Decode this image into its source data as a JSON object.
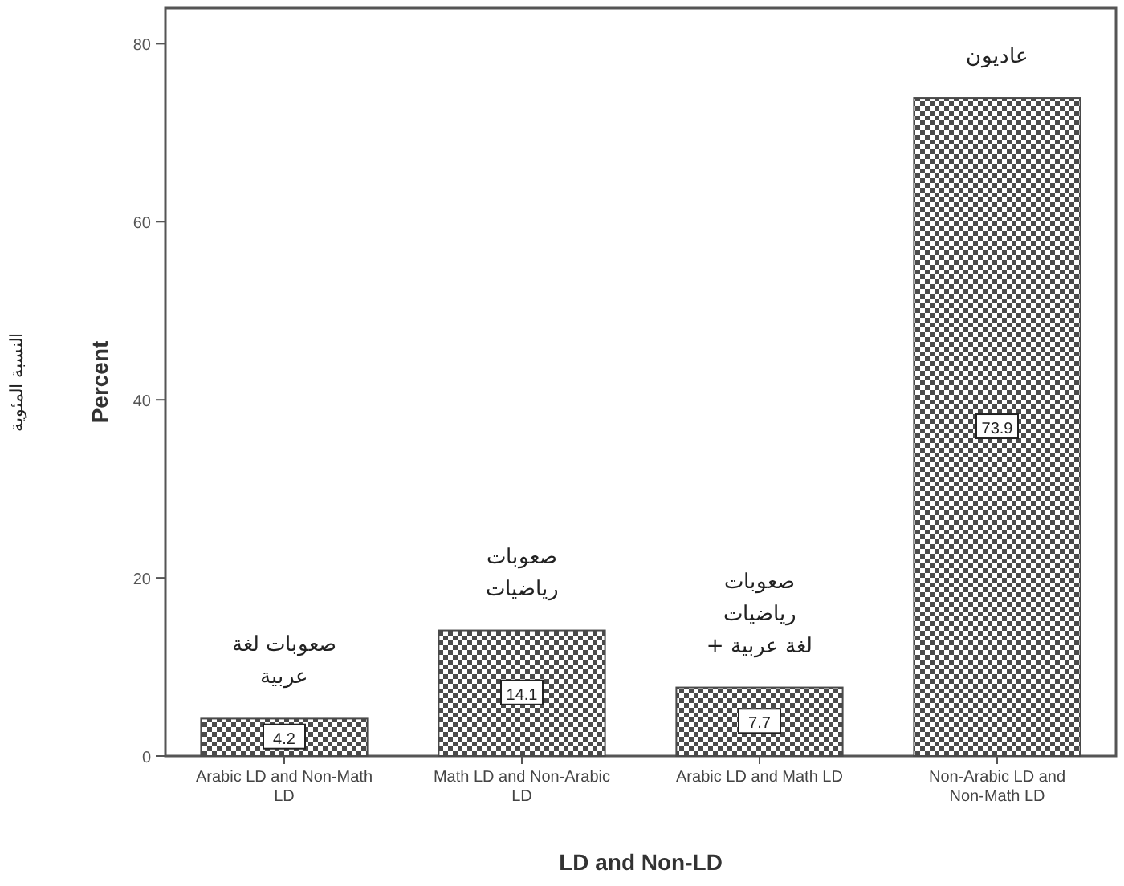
{
  "chart_data": {
    "type": "bar",
    "xlabel": "LD and Non-LD",
    "ylabel": "Percent",
    "categories": [
      "Arabic LD and Non-Math LD",
      "Math LD and Non-Arabic LD",
      "Arabic LD and Math LD",
      "Non-Arabic LD and Non-Math LD"
    ],
    "values": [
      4.2,
      14.1,
      7.7,
      73.9
    ],
    "color": "#4a4a4a",
    "ylim": [
      0,
      84
    ],
    "yticks": [
      0,
      20,
      40,
      60,
      80
    ],
    "grid": false,
    "data_labels": true,
    "annotations": [
      {
        "text": "صعوبات لغة\nعربية",
        "x": "Arabic LD and Non-Math LD",
        "y": 4.2
      },
      {
        "text": "صعوبات\nرياضيات",
        "x": "Math LD and Non-Arabic LD",
        "y": 14.1
      },
      {
        "text": "صعوبات\nرياضيات\nلغة عربية +",
        "x": "Arabic LD and Math LD",
        "y": 7.7
      },
      {
        "text": "عاديون",
        "x": "Non-Arabic LD and Non-Math LD",
        "y": 73.9
      },
      "النسبة المئوية"
    ]
  }
}
